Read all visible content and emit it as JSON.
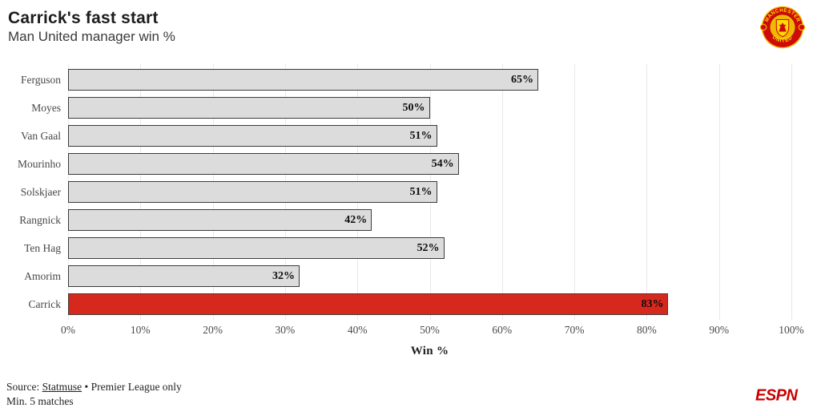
{
  "header": {
    "title": "Carrick's fast start",
    "subtitle": "Man United manager win %"
  },
  "logo": {
    "club": "Manchester United",
    "crest_top_text": "MANCHESTER",
    "crest_bottom_text": "UNITED",
    "crest_red": "#cf0a0a",
    "crest_gold": "#f2b705",
    "crest_yellow": "#ffdd00"
  },
  "chart_data": {
    "type": "bar",
    "orientation": "horizontal",
    "categories": [
      "Ferguson",
      "Moyes",
      "Van Gaal",
      "Mourinho",
      "Solskjaer",
      "Rangnick",
      "Ten Hag",
      "Amorim",
      "Carrick"
    ],
    "values": [
      65,
      50,
      51,
      54,
      51,
      42,
      52,
      32,
      83
    ],
    "value_labels": [
      "65%",
      "50%",
      "51%",
      "54%",
      "51%",
      "42%",
      "52%",
      "32%",
      "83%"
    ],
    "highlight_category": "Carrick",
    "highlight_color": "#d7281e",
    "bar_color": "#dcdcdc",
    "bar_border_color": "#3b3b3b",
    "gridline_color": "#e8e8e8",
    "grid": true,
    "xlabel": "Win %",
    "xlim": [
      0,
      100
    ],
    "x_ticks": [
      "0%",
      "10%",
      "20%",
      "30%",
      "40%",
      "50%",
      "60%",
      "70%",
      "80%",
      "90%",
      "100%"
    ]
  },
  "footer": {
    "source_prefix": "Source: ",
    "source_link": "Statmuse",
    "source_rest": " • Premier League only",
    "note": "Min. 5 matches",
    "espn_wordmark": "ESPN",
    "espn_red": "#cc0000"
  }
}
